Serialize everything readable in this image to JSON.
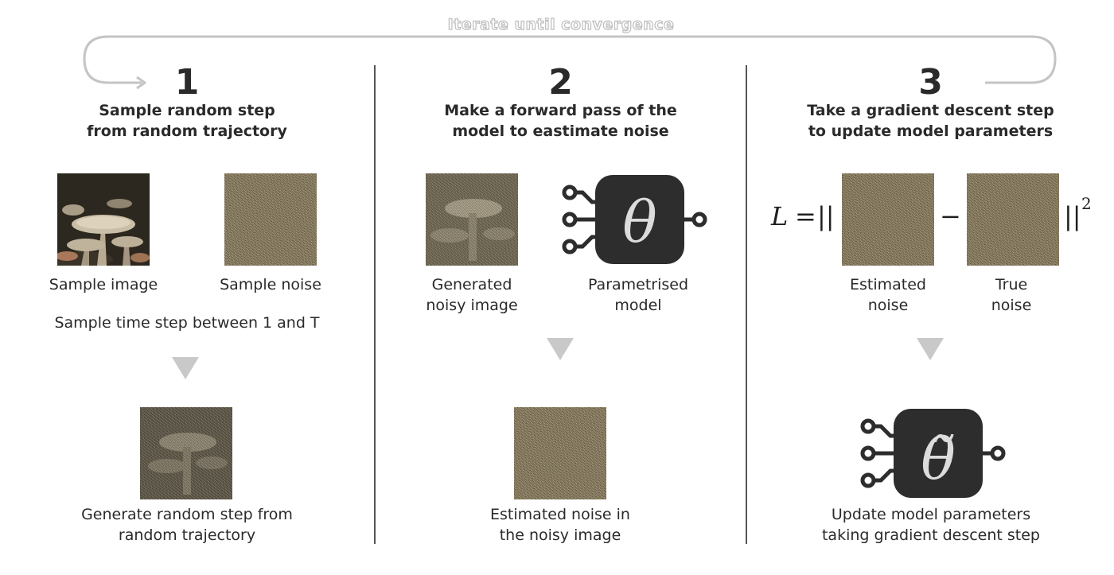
{
  "loop": {
    "label": "Iterate until convergence"
  },
  "steps": [
    {
      "number": "1",
      "title": [
        "Sample random step",
        "from random trajectory"
      ],
      "image_caption": "Sample image",
      "noise_caption": "Sample noise",
      "time_caption": "Sample time step between 1 and T",
      "result_caption": [
        "Generate random step from",
        "random trajectory"
      ]
    },
    {
      "number": "2",
      "title": [
        "Make a forward pass of the",
        "model to eastimate noise"
      ],
      "noisy_caption": [
        "Generated",
        "noisy image"
      ],
      "model_caption": [
        "Parametrised",
        "model"
      ],
      "model_symbol": "θ",
      "result_caption": [
        "Estimated noise in",
        "the noisy image"
      ]
    },
    {
      "number": "3",
      "title": [
        "Take a gradient descent step",
        "to update model parameters"
      ],
      "formula": {
        "lhs": "L",
        "equals": "=",
        "open": "||",
        "minus": "−",
        "close": "||",
        "exponent": "2"
      },
      "estimated_caption": [
        "Estimated",
        "noise"
      ],
      "true_caption": [
        "True",
        "noise"
      ],
      "model_symbol": "θ̃",
      "result_caption": [
        "Update model parameters",
        "taking gradient descent step"
      ]
    }
  ],
  "colors": {
    "text": "#2a2a2a",
    "divider": "#555555",
    "loop_arrow": "#c4c4c4",
    "arrow_down": "#c9c9c9",
    "model_body": "#2d2d2d",
    "noise": "#8d8060"
  },
  "icons": [
    "loop-arrow-icon",
    "down-arrow-icon",
    "circuit-chip-icon"
  ]
}
